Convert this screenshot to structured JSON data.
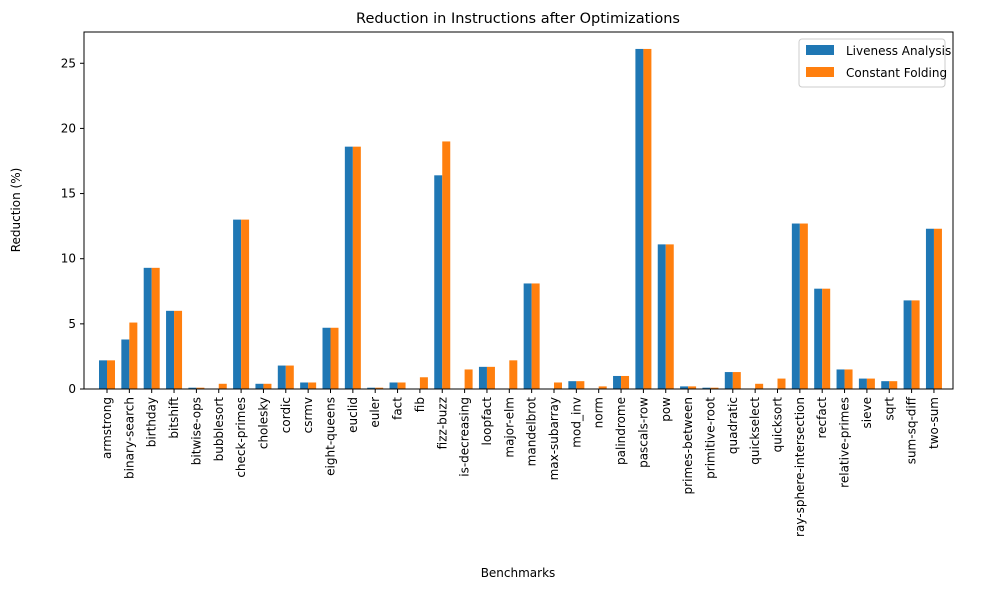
{
  "chart_data": {
    "type": "bar",
    "title": "Reduction in Instructions after Optimizations",
    "xlabel": "Benchmarks",
    "ylabel": "Reduction (%)",
    "ylim": [
      0,
      27.4
    ],
    "yticks": [
      0,
      5,
      10,
      15,
      20,
      25
    ],
    "grid": false,
    "legend_position": "top-right",
    "categories": [
      "armstrong",
      "binary-search",
      "birthday",
      "bitshift",
      "bitwise-ops",
      "bubblesort",
      "check-primes",
      "cholesky",
      "cordic",
      "csrmv",
      "eight-queens",
      "euclid",
      "euler",
      "fact",
      "fib",
      "fizz-buzz",
      "is-decreasing",
      "loopfact",
      "major-elm",
      "mandelbrot",
      "max-subarray",
      "mod_inv",
      "norm",
      "palindrome",
      "pascals-row",
      "pow",
      "primes-between",
      "primitive-root",
      "quadratic",
      "quickselect",
      "quicksort",
      "ray-sphere-intersection",
      "recfact",
      "relative-primes",
      "sieve",
      "sqrt",
      "sum-sq-diff",
      "two-sum"
    ],
    "series": [
      {
        "name": "Liveness Analysis",
        "color": "#1f77b4",
        "values": [
          2.2,
          3.8,
          9.3,
          6.0,
          0.1,
          0.0,
          13.0,
          0.4,
          1.8,
          0.5,
          4.7,
          18.6,
          0.1,
          0.5,
          0.0,
          16.4,
          0.0,
          1.7,
          0.0,
          8.1,
          0.0,
          0.6,
          0.0,
          1.0,
          26.1,
          11.1,
          0.2,
          0.1,
          1.3,
          0.0,
          0.0,
          12.7,
          7.7,
          1.5,
          0.8,
          0.6,
          6.8,
          12.3
        ]
      },
      {
        "name": "Constant Folding",
        "color": "#ff7f0e",
        "values": [
          2.2,
          5.1,
          9.3,
          6.0,
          0.1,
          0.4,
          13.0,
          0.4,
          1.8,
          0.5,
          4.7,
          18.6,
          0.1,
          0.5,
          0.9,
          19.0,
          1.5,
          1.7,
          2.2,
          8.1,
          0.5,
          0.6,
          0.2,
          1.0,
          26.1,
          11.1,
          0.2,
          0.1,
          1.3,
          0.4,
          0.8,
          12.7,
          7.7,
          1.5,
          0.8,
          0.6,
          6.8,
          12.3
        ]
      }
    ]
  }
}
